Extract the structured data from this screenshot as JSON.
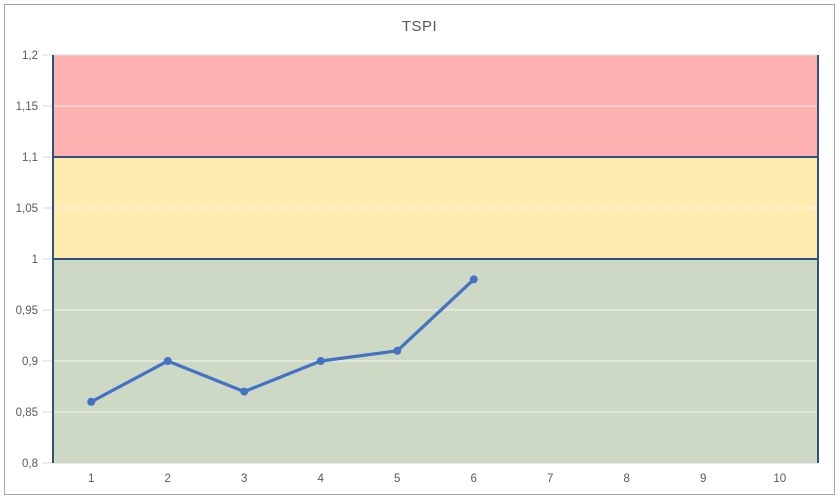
{
  "chart_data": {
    "type": "line",
    "title": "TSPI",
    "xlabel": "",
    "ylabel": "",
    "categories": [
      "1",
      "2",
      "3",
      "4",
      "5",
      "6",
      "7",
      "8",
      "9",
      "10"
    ],
    "series": [
      {
        "name": "TSPI",
        "x": [
          1,
          2,
          3,
          4,
          5,
          6
        ],
        "values": [
          0.86,
          0.9,
          0.87,
          0.9,
          0.91,
          0.98
        ],
        "color": "#4472c4",
        "marker": "circle"
      }
    ],
    "ylim": [
      0.8,
      1.2
    ],
    "ytick_values": [
      1.2,
      1.15,
      1.1,
      1.05,
      1.0,
      0.95,
      0.9,
      0.85,
      0.8
    ],
    "ytick_labels": [
      "1,2",
      "1,15",
      "1,1",
      "1,05",
      "1",
      "0,95",
      "0,9",
      "0,85",
      "0,8"
    ],
    "decimal_separator": ",",
    "grid": true,
    "legend_position": "none",
    "bands": [
      {
        "zone": "red-zone",
        "from": 1.1,
        "to": 1.2,
        "color": "#ffb1b1"
      },
      {
        "zone": "yellow-zone",
        "from": 1.0,
        "to": 1.1,
        "color": "#ffebae"
      },
      {
        "zone": "green-zone",
        "from": 0.8,
        "to": 1.0,
        "color": "#cdd8c5"
      }
    ],
    "threshold_lines": [
      {
        "y": 1.1
      },
      {
        "y": 1.0
      }
    ],
    "colors": {
      "series_line": "#4472c4",
      "threshold_line": "#2e527e",
      "gridline_outer": "#d9d9d9",
      "gridline_inner": "rgba(255,255,255,0.72)",
      "axis_text": "#595959",
      "frame_border": "#a6a6a6",
      "band_red": "#ffb1b1",
      "band_yellow": "#ffebae",
      "band_green": "#cdd8c5"
    }
  }
}
